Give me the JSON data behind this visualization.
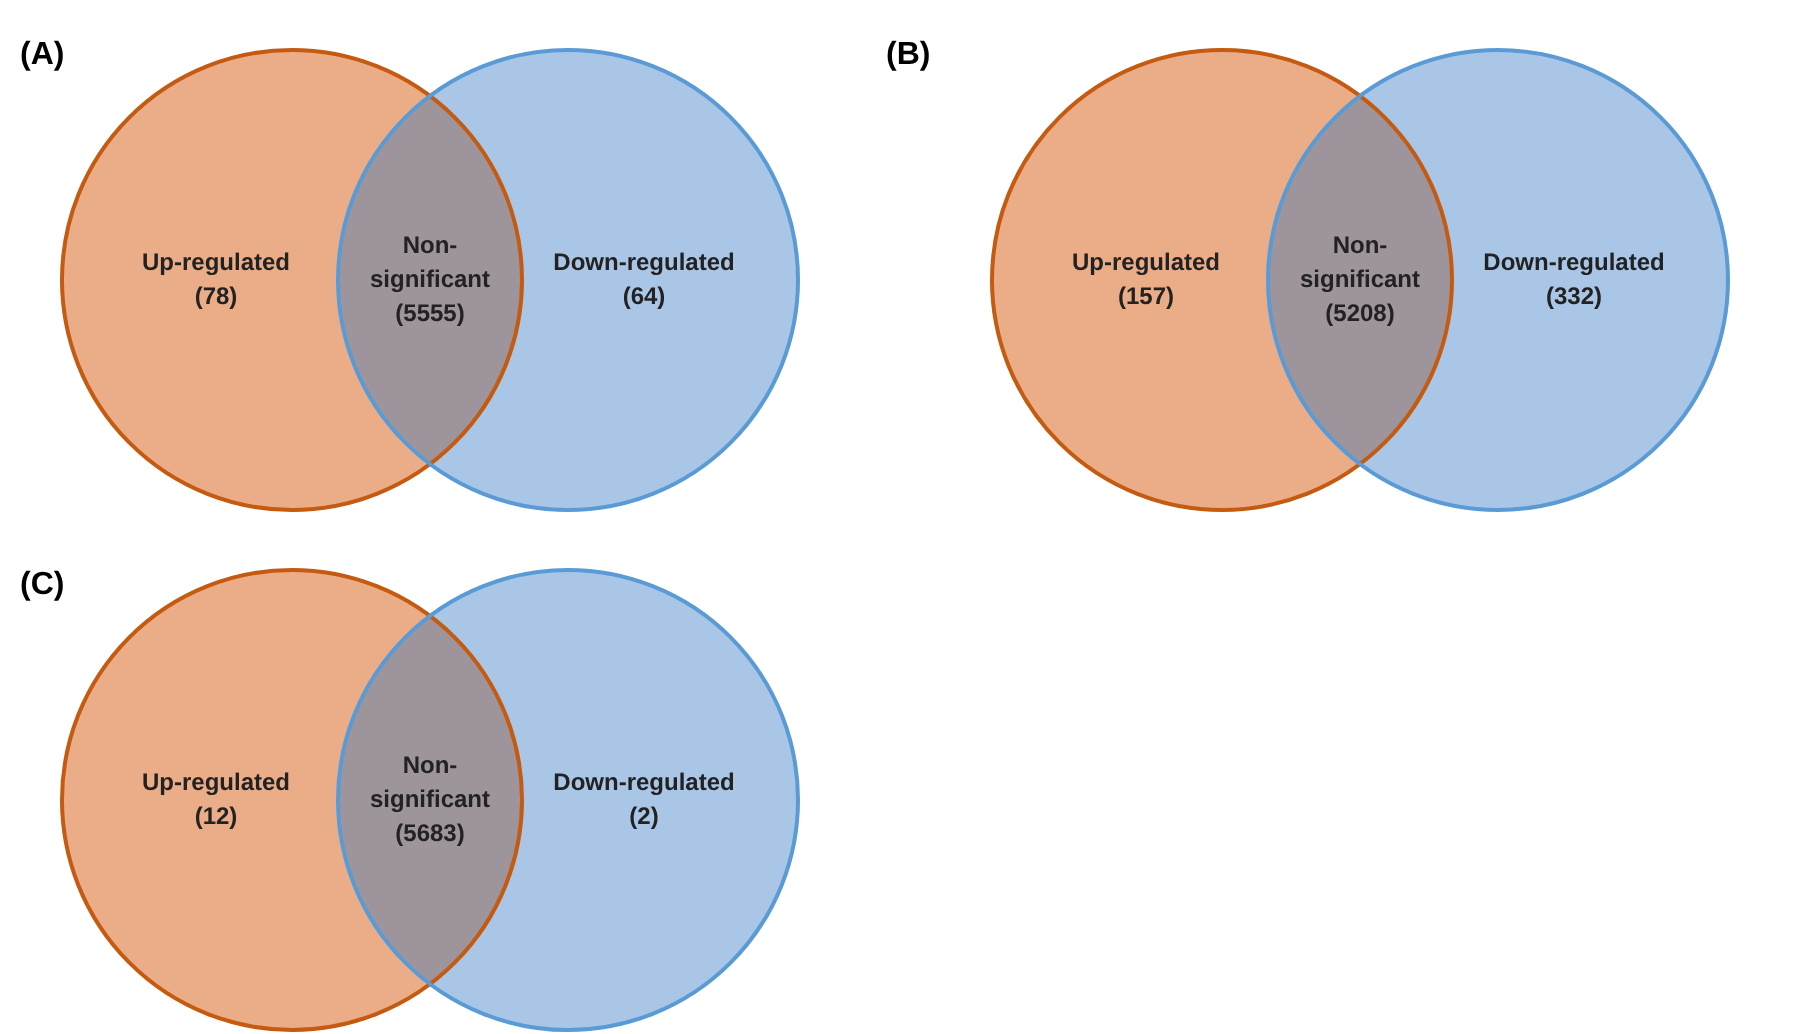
{
  "chart_data": [
    {
      "type": "other",
      "title": "(A)",
      "categories": [
        "Up-regulated",
        "Non-significant",
        "Down-regulated"
      ],
      "values": [
        78,
        5555,
        64
      ],
      "value_labels": [
        "(78)",
        "(5555)",
        "(64)"
      ],
      "colors": [
        "#ebad88",
        "#9e949c",
        "#a9c6e7"
      ],
      "data_labels": true
    },
    {
      "type": "other",
      "title": "(B)",
      "categories": [
        "Up-regulated",
        "Non-significant",
        "Down-regulated"
      ],
      "values": [
        157,
        5208,
        332
      ],
      "value_labels": [
        "(157)",
        "(5208)",
        "(332)"
      ],
      "colors": [
        "#ebad88",
        "#9e949c",
        "#a9c6e7"
      ],
      "data_labels": true
    },
    {
      "type": "other",
      "title": "(C)",
      "categories": [
        "Up-regulated",
        "Non-significant",
        "Down-regulated"
      ],
      "values": [
        12,
        5683,
        2
      ],
      "value_labels": [
        "(12)",
        "(5683)",
        "(2)"
      ],
      "colors": [
        "#ebad88",
        "#9e949c",
        "#a9c6e7"
      ],
      "data_labels": true
    }
  ]
}
